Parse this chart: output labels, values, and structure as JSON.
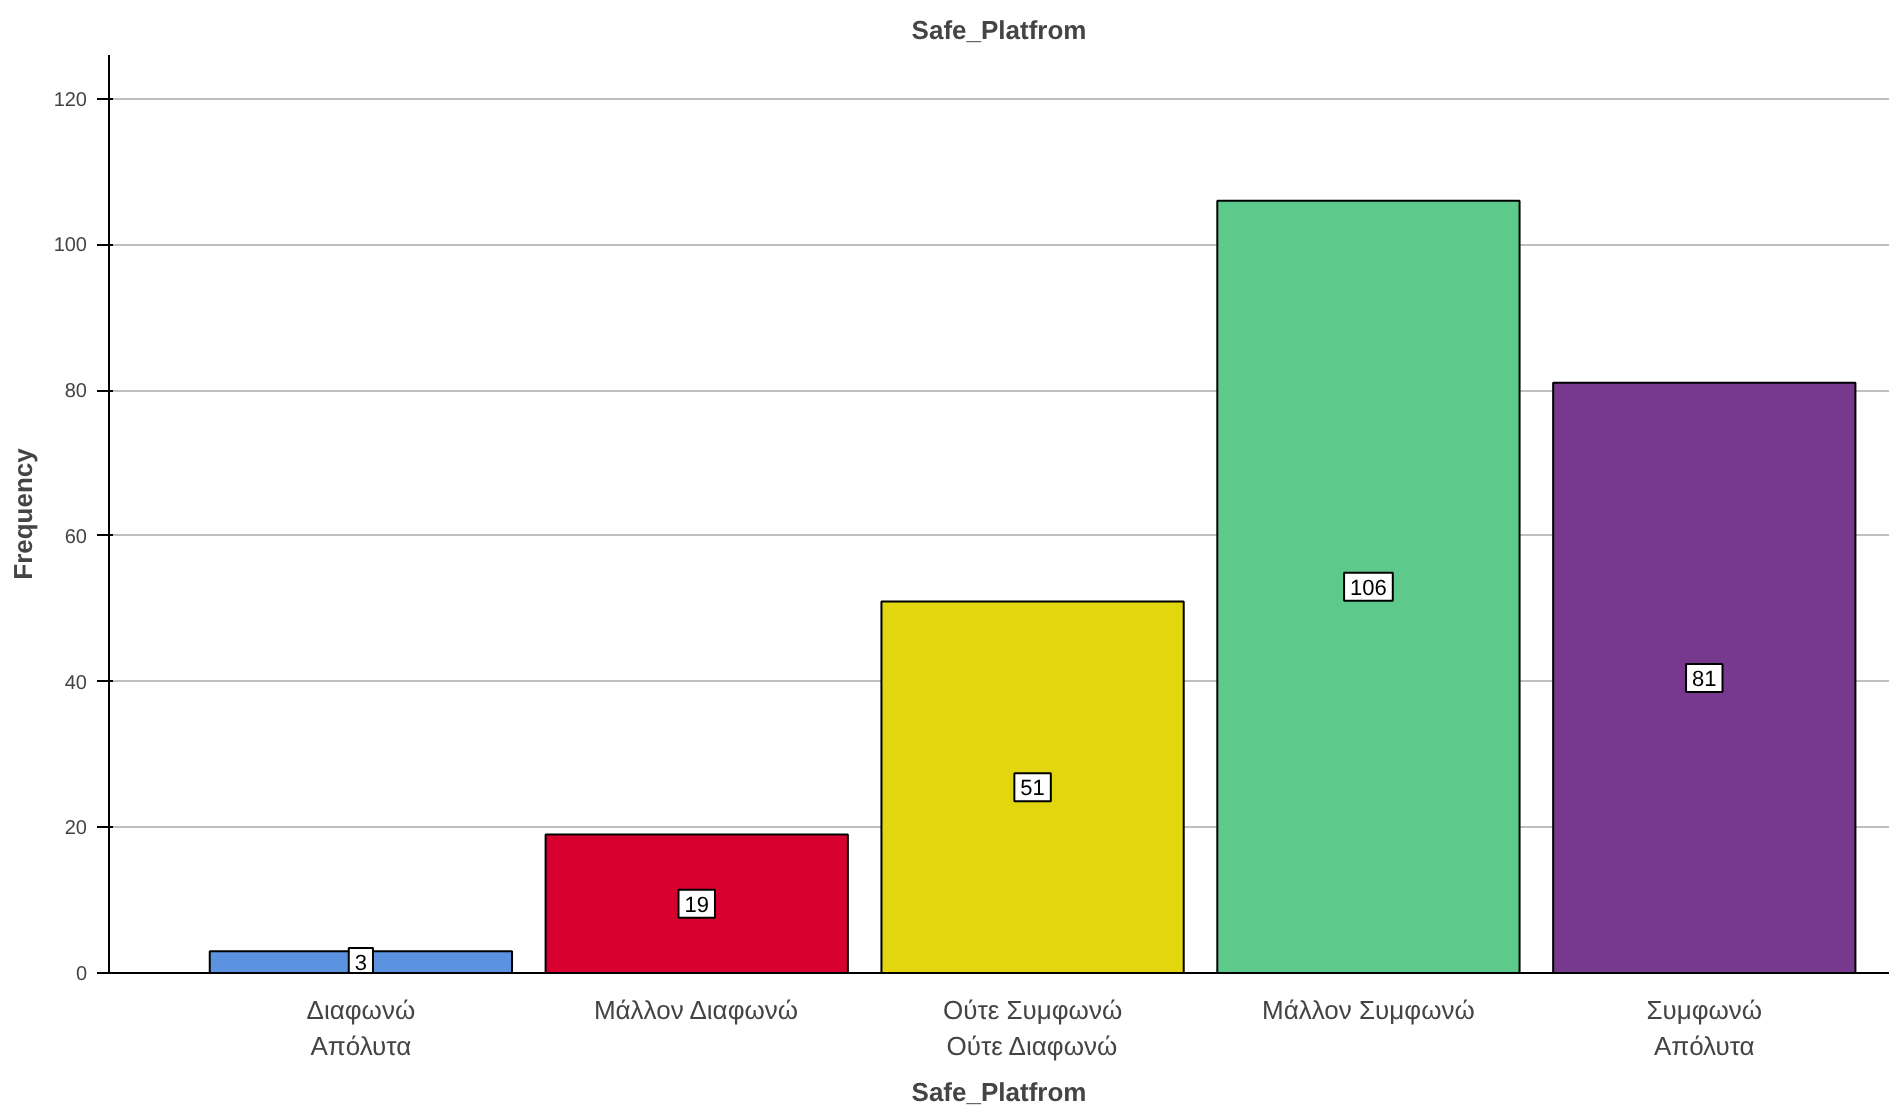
{
  "chart_data": {
    "type": "bar",
    "title": "Safe_Platfrom",
    "xlabel": "Safe_Platfrom",
    "ylabel": "Frequency",
    "categories": [
      "Διαφωνώ\nΑπόλυτα",
      "Μάλλον Διαφωνώ",
      "Ούτε Συμφωνώ\nΟύτε Διαφωνώ",
      "Μάλλον Συμφωνώ",
      "Συμφωνώ\nΑπόλυτα"
    ],
    "values": [
      3,
      19,
      51,
      106,
      81
    ],
    "colors": [
      "#5b93e0",
      "#d7002f",
      "#e2d70f",
      "#5dca8b",
      "#76398e"
    ],
    "ylim": [
      0,
      126
    ],
    "yticks": [
      0,
      20,
      40,
      60,
      80,
      100,
      120
    ],
    "grid": "y",
    "data_labels": true
  }
}
